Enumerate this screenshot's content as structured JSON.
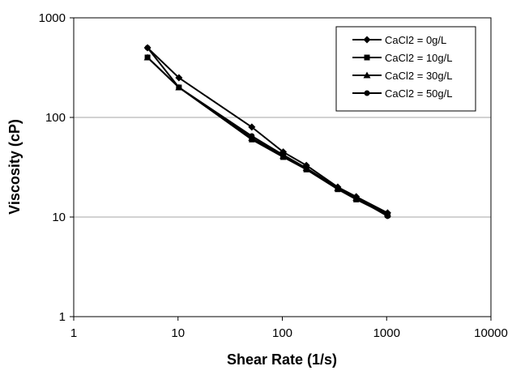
{
  "chart_data": {
    "type": "line",
    "title": "",
    "xlabel": "Shear Rate (1/s)",
    "ylabel": "Viscosity (cP)",
    "x_scale": "log",
    "y_scale": "log",
    "xlim": [
      1,
      10000
    ],
    "ylim": [
      1,
      1000
    ],
    "x_ticks": [
      1,
      10,
      100,
      1000,
      10000
    ],
    "x_tick_labels": [
      "1",
      "10",
      "100",
      "1000",
      "10000"
    ],
    "y_ticks": [
      1,
      10,
      100,
      1000
    ],
    "y_tick_labels": [
      "1",
      "10",
      "100",
      "1000"
    ],
    "grid": "horizontal",
    "legend_position": "top-right",
    "x": [
      5.1,
      10.2,
      51,
      102,
      170,
      340,
      511,
      1021
    ],
    "series": [
      {
        "name": "CaCl2 = 0g/L",
        "marker": "diamond",
        "values": [
          500,
          250,
          80,
          45,
          33,
          20,
          16,
          11
        ]
      },
      {
        "name": "CaCl2 = 10g/L",
        "marker": "square",
        "values": [
          400,
          200,
          60,
          40,
          30,
          19,
          15,
          10.5
        ]
      },
      {
        "name": "CaCl2 = 30g/L",
        "marker": "triangle",
        "values": [
          400,
          200,
          62,
          41,
          31,
          19.5,
          15.5,
          10.8
        ]
      },
      {
        "name": "CaCl2 = 50g/L",
        "marker": "circle",
        "values": [
          500,
          200,
          65,
          42,
          31,
          19.5,
          15.5,
          10.2
        ]
      }
    ]
  }
}
